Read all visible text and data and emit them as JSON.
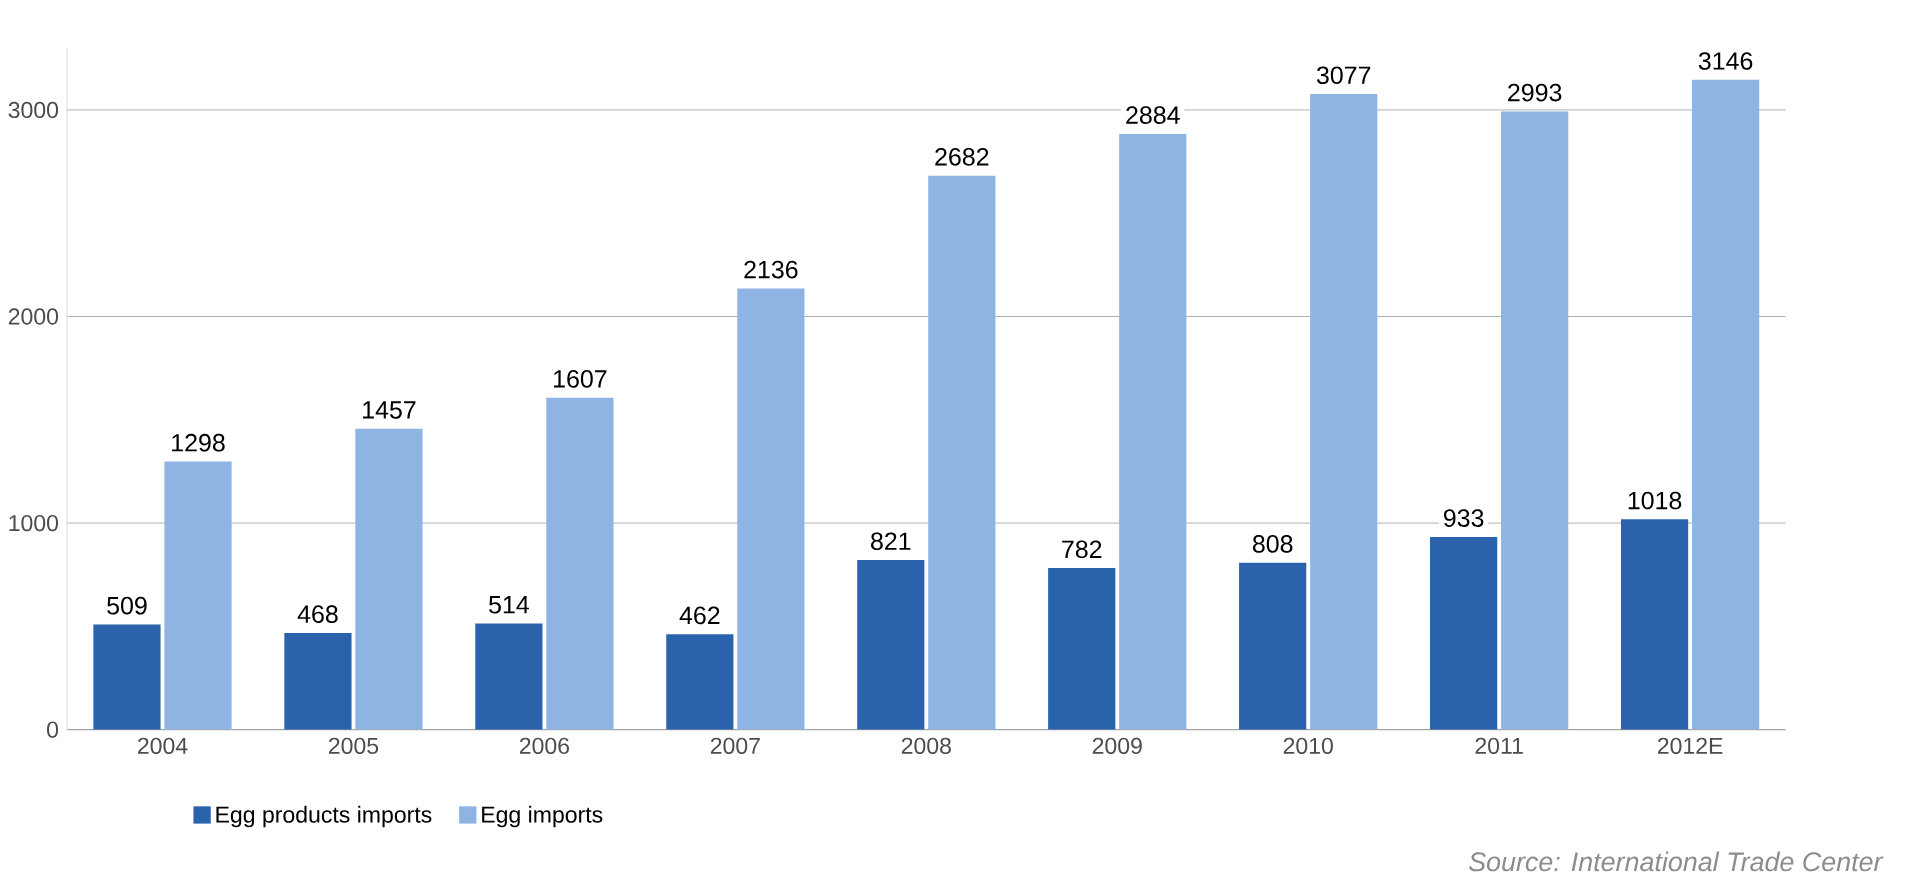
{
  "chart_data": {
    "type": "bar",
    "categories": [
      "2004",
      "2005",
      "2006",
      "2007",
      "2008",
      "2009",
      "2010",
      "2011",
      "2012E"
    ],
    "series": [
      {
        "name": "Egg products imports",
        "color": "#2a62ab",
        "values": [
          509,
          468,
          514,
          462,
          821,
          782,
          808,
          933,
          1018
        ]
      },
      {
        "name": "Egg imports",
        "color": "#8db4e2",
        "values": [
          1298,
          1457,
          1607,
          2136,
          2682,
          2884,
          3077,
          2993,
          3146
        ]
      }
    ],
    "ylim": [
      0,
      3300
    ],
    "yticks": [
      0,
      1000,
      2000,
      3000
    ],
    "grid": "y",
    "data_labels": true,
    "legend": "bottom",
    "annotations": [
      "Source: International Trade Center"
    ]
  }
}
